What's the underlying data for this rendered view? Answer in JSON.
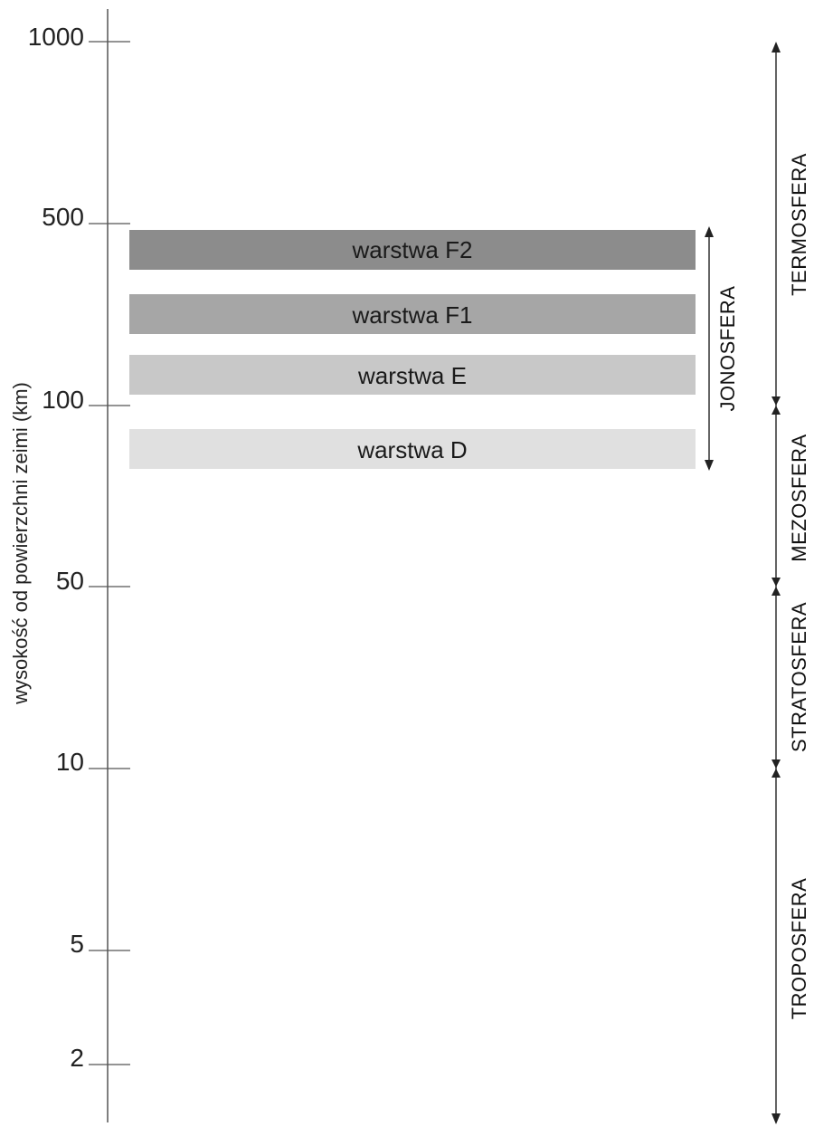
{
  "axis": {
    "label": "wysokość od powierzchni zeimi (km)",
    "ticks": [
      {
        "value": 1000,
        "label": "1000"
      },
      {
        "value": 500,
        "label": "500"
      },
      {
        "value": 100,
        "label": "100"
      },
      {
        "value": 50,
        "label": "50"
      },
      {
        "value": 10,
        "label": "10"
      },
      {
        "value": 5,
        "label": "5"
      },
      {
        "value": 2,
        "label": "2"
      }
    ]
  },
  "layers": [
    {
      "label": "warstwa F2",
      "color": "#8c8c8c"
    },
    {
      "label": "warstwa F1",
      "color": "#a6a6a6"
    },
    {
      "label": "warstwa E",
      "color": "#c8c8c8"
    },
    {
      "label": "warstwa D",
      "color": "#e0e0e0"
    }
  ],
  "ionosphere": {
    "label": "JONOSFERA"
  },
  "regions": [
    {
      "label": "TERMOSFERA"
    },
    {
      "label": "MEZOSFERA"
    },
    {
      "label": "STRATOSFERA"
    },
    {
      "label": "TROPOSFERA"
    }
  ]
}
